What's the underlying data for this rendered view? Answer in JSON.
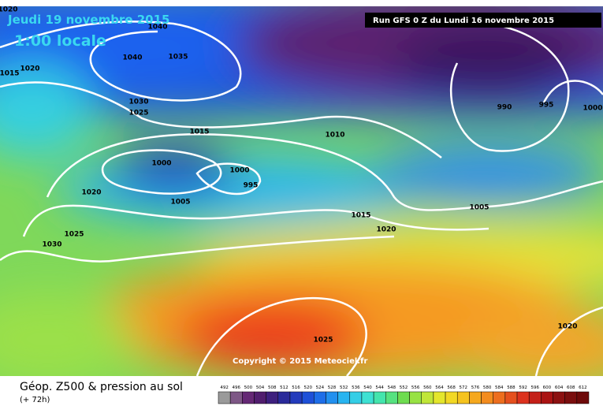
{
  "header": {
    "date": "Jeudi 19 novembre 2015",
    "time": "1:00 locale",
    "run": "Run GFS 0 Z du Lundi 16 novembre 2015"
  },
  "isobar_labels": [
    1020,
    1040,
    1015,
    1020,
    1040,
    1035,
    1030,
    1025,
    1015,
    1010,
    990,
    995,
    1000,
    1000,
    1000,
    995,
    1020,
    1005,
    1015,
    1020,
    1005,
    1025,
    1030,
    1020,
    1025
  ],
  "copyright": "Copyright © 2015 Meteociel.fr",
  "footer": {
    "title": "Géop. Z500 & pression au sol",
    "lead": "(+ 72h)",
    "scale": [
      492,
      496,
      500,
      504,
      508,
      512,
      516,
      520,
      524,
      528,
      532,
      536,
      540,
      544,
      548,
      552,
      556,
      560,
      564,
      568,
      572,
      576,
      580,
      584,
      588,
      592,
      596,
      600,
      604,
      608,
      612
    ]
  }
}
